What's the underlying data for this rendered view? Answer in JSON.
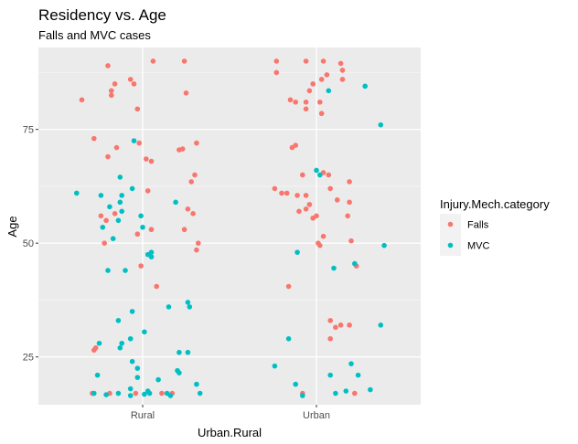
{
  "chart_data": {
    "type": "scatter",
    "title": "Residency vs. Age",
    "subtitle": "Falls and MVC cases",
    "xlabel": "Urban.Rural",
    "ylabel": "Age",
    "categories": [
      "Rural",
      "Urban"
    ],
    "ylim": [
      14.5,
      93
    ],
    "yticks": [
      25,
      50,
      75
    ],
    "grid": true,
    "jitter_width": 0.4,
    "legend": {
      "title": "Injury.Mech.category",
      "position": "right",
      "entries": [
        {
          "name": "Falls",
          "color": "#F8766D"
        },
        {
          "name": "MVC",
          "color": "#00BFC4"
        }
      ]
    },
    "series": [
      {
        "name": "Falls",
        "color": "#F8766D",
        "points": [
          {
            "x": 0.65,
            "y": 81.5
          },
          {
            "x": 0.72,
            "y": 73
          },
          {
            "x": 0.8,
            "y": 89
          },
          {
            "x": 0.82,
            "y": 83.5
          },
          {
            "x": 0.82,
            "y": 82.5
          },
          {
            "x": 0.84,
            "y": 85
          },
          {
            "x": 0.93,
            "y": 86
          },
          {
            "x": 0.95,
            "y": 85
          },
          {
            "x": 0.97,
            "y": 79.5
          },
          {
            "x": 1.06,
            "y": 90
          },
          {
            "x": 1.24,
            "y": 90
          },
          {
            "x": 1.25,
            "y": 83
          },
          {
            "x": 0.8,
            "y": 69
          },
          {
            "x": 0.85,
            "y": 71
          },
          {
            "x": 0.98,
            "y": 72
          },
          {
            "x": 1.02,
            "y": 68.5
          },
          {
            "x": 1.05,
            "y": 68
          },
          {
            "x": 1.21,
            "y": 70.5
          },
          {
            "x": 1.23,
            "y": 70.7
          },
          {
            "x": 1.31,
            "y": 72
          },
          {
            "x": 1.3,
            "y": 65
          },
          {
            "x": 1.28,
            "y": 63.5
          },
          {
            "x": 1.03,
            "y": 61.5
          },
          {
            "x": 0.76,
            "y": 56
          },
          {
            "x": 0.84,
            "y": 56.5
          },
          {
            "x": 0.79,
            "y": 55
          },
          {
            "x": 1.26,
            "y": 57.5
          },
          {
            "x": 1.29,
            "y": 56.5
          },
          {
            "x": 1.05,
            "y": 53
          },
          {
            "x": 0.97,
            "y": 52
          },
          {
            "x": 1.24,
            "y": 53
          },
          {
            "x": 0.78,
            "y": 50
          },
          {
            "x": 1.32,
            "y": 50
          },
          {
            "x": 1.31,
            "y": 48.5
          },
          {
            "x": 0.99,
            "y": 45
          },
          {
            "x": 1.08,
            "y": 40.5
          },
          {
            "x": 0.72,
            "y": 26.5
          },
          {
            "x": 0.73,
            "y": 27
          },
          {
            "x": 0.71,
            "y": 17
          },
          {
            "x": 0.81,
            "y": 17
          },
          {
            "x": 0.96,
            "y": 17
          },
          {
            "x": 1.11,
            "y": 17
          },
          {
            "x": 1.17,
            "y": 17
          },
          {
            "x": 1.77,
            "y": 90
          },
          {
            "x": 1.94,
            "y": 90
          },
          {
            "x": 2.04,
            "y": 90
          },
          {
            "x": 2.14,
            "y": 89.5
          },
          {
            "x": 2.15,
            "y": 88
          },
          {
            "x": 1.77,
            "y": 87.5
          },
          {
            "x": 2.03,
            "y": 86
          },
          {
            "x": 2.06,
            "y": 87
          },
          {
            "x": 1.98,
            "y": 85
          },
          {
            "x": 1.96,
            "y": 83.5
          },
          {
            "x": 2.15,
            "y": 86
          },
          {
            "x": 1.85,
            "y": 81.5
          },
          {
            "x": 1.88,
            "y": 81
          },
          {
            "x": 1.94,
            "y": 81
          },
          {
            "x": 2.02,
            "y": 81
          },
          {
            "x": 1.94,
            "y": 79.5
          },
          {
            "x": 2.03,
            "y": 78.5
          },
          {
            "x": 1.86,
            "y": 71
          },
          {
            "x": 1.88,
            "y": 71.5
          },
          {
            "x": 1.92,
            "y": 65
          },
          {
            "x": 2.04,
            "y": 65.5
          },
          {
            "x": 2.07,
            "y": 65
          },
          {
            "x": 2.19,
            "y": 63.5
          },
          {
            "x": 1.76,
            "y": 62
          },
          {
            "x": 1.8,
            "y": 61
          },
          {
            "x": 1.83,
            "y": 61
          },
          {
            "x": 1.89,
            "y": 60.5
          },
          {
            "x": 1.94,
            "y": 60.5
          },
          {
            "x": 1.96,
            "y": 58.5
          },
          {
            "x": 2.08,
            "y": 62
          },
          {
            "x": 2.12,
            "y": 59.5
          },
          {
            "x": 2.19,
            "y": 59
          },
          {
            "x": 1.9,
            "y": 57
          },
          {
            "x": 1.94,
            "y": 57.5
          },
          {
            "x": 2.0,
            "y": 56
          },
          {
            "x": 1.98,
            "y": 55.5
          },
          {
            "x": 2.18,
            "y": 56
          },
          {
            "x": 2.01,
            "y": 50
          },
          {
            "x": 2.02,
            "y": 49.5
          },
          {
            "x": 2.04,
            "y": 51.5
          },
          {
            "x": 2.2,
            "y": 50.5
          },
          {
            "x": 2.23,
            "y": 45
          },
          {
            "x": 1.84,
            "y": 40.5
          },
          {
            "x": 2.08,
            "y": 33
          },
          {
            "x": 2.11,
            "y": 31.5
          },
          {
            "x": 2.14,
            "y": 32
          },
          {
            "x": 2.19,
            "y": 32
          },
          {
            "x": 2.08,
            "y": 29
          },
          {
            "x": 1.92,
            "y": 17
          },
          {
            "x": 2.22,
            "y": 17
          }
        ]
      },
      {
        "name": "MVC",
        "color": "#00BFC4",
        "points": [
          {
            "x": 0.95,
            "y": 72.5
          },
          {
            "x": 0.87,
            "y": 64.5
          },
          {
            "x": 0.62,
            "y": 61
          },
          {
            "x": 0.76,
            "y": 60.5
          },
          {
            "x": 0.88,
            "y": 60.5
          },
          {
            "x": 0.94,
            "y": 62
          },
          {
            "x": 1.19,
            "y": 59
          },
          {
            "x": 0.81,
            "y": 58
          },
          {
            "x": 0.87,
            "y": 59
          },
          {
            "x": 0.88,
            "y": 57
          },
          {
            "x": 0.86,
            "y": 55
          },
          {
            "x": 0.77,
            "y": 53.5
          },
          {
            "x": 0.99,
            "y": 56
          },
          {
            "x": 1.0,
            "y": 53.5
          },
          {
            "x": 0.83,
            "y": 51
          },
          {
            "x": 1.03,
            "y": 47.5
          },
          {
            "x": 1.05,
            "y": 47
          },
          {
            "x": 1.05,
            "y": 48
          },
          {
            "x": 0.8,
            "y": 44
          },
          {
            "x": 0.9,
            "y": 44
          },
          {
            "x": 1.26,
            "y": 37
          },
          {
            "x": 1.27,
            "y": 36
          },
          {
            "x": 1.15,
            "y": 36
          },
          {
            "x": 0.94,
            "y": 35
          },
          {
            "x": 0.86,
            "y": 33
          },
          {
            "x": 1.01,
            "y": 30.5
          },
          {
            "x": 0.93,
            "y": 29
          },
          {
            "x": 0.75,
            "y": 28
          },
          {
            "x": 0.87,
            "y": 27
          },
          {
            "x": 0.88,
            "y": 28
          },
          {
            "x": 1.21,
            "y": 26
          },
          {
            "x": 1.26,
            "y": 26
          },
          {
            "x": 0.94,
            "y": 24
          },
          {
            "x": 0.97,
            "y": 22.5
          },
          {
            "x": 0.74,
            "y": 21
          },
          {
            "x": 1.2,
            "y": 22
          },
          {
            "x": 1.21,
            "y": 21.5
          },
          {
            "x": 0.97,
            "y": 20.5
          },
          {
            "x": 1.09,
            "y": 20
          },
          {
            "x": 1.31,
            "y": 19
          },
          {
            "x": 0.93,
            "y": 18
          },
          {
            "x": 0.86,
            "y": 17
          },
          {
            "x": 0.79,
            "y": 16.7
          },
          {
            "x": 0.72,
            "y": 17
          },
          {
            "x": 1.01,
            "y": 16.8
          },
          {
            "x": 1.04,
            "y": 17
          },
          {
            "x": 1.14,
            "y": 17
          },
          {
            "x": 1.16,
            "y": 16.5
          },
          {
            "x": 1.33,
            "y": 17
          },
          {
            "x": 1.03,
            "y": 17.5
          },
          {
            "x": 0.93,
            "y": 16.5
          },
          {
            "x": 2.07,
            "y": 83.5
          },
          {
            "x": 2.28,
            "y": 84.5
          },
          {
            "x": 2.37,
            "y": 76
          },
          {
            "x": 2.0,
            "y": 66
          },
          {
            "x": 2.02,
            "y": 65
          },
          {
            "x": 1.89,
            "y": 48
          },
          {
            "x": 2.1,
            "y": 44.5
          },
          {
            "x": 2.22,
            "y": 45.5
          },
          {
            "x": 2.39,
            "y": 49.5
          },
          {
            "x": 2.37,
            "y": 32
          },
          {
            "x": 1.84,
            "y": 29
          },
          {
            "x": 1.76,
            "y": 23
          },
          {
            "x": 2.2,
            "y": 23.5
          },
          {
            "x": 2.08,
            "y": 21
          },
          {
            "x": 2.24,
            "y": 21
          },
          {
            "x": 1.88,
            "y": 19
          },
          {
            "x": 1.92,
            "y": 16.5
          },
          {
            "x": 2.11,
            "y": 17
          },
          {
            "x": 2.17,
            "y": 17.5
          },
          {
            "x": 2.31,
            "y": 17.8
          }
        ]
      }
    ]
  }
}
